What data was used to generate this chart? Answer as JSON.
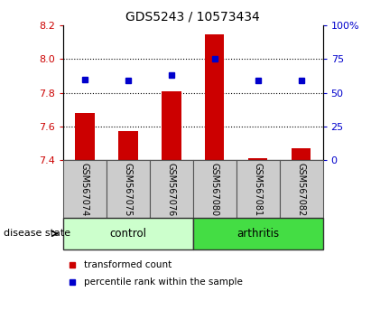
{
  "title": "GDS5243 / 10573434",
  "samples": [
    "GSM567074",
    "GSM567075",
    "GSM567076",
    "GSM567080",
    "GSM567081",
    "GSM567082"
  ],
  "transformed_count": [
    7.68,
    7.57,
    7.81,
    8.15,
    7.41,
    7.47
  ],
  "percentile_rank": [
    60,
    59,
    63,
    75,
    59,
    59
  ],
  "bar_bottom": 7.4,
  "ylim_left": [
    7.4,
    8.2
  ],
  "ylim_right": [
    0,
    100
  ],
  "yticks_left": [
    7.4,
    7.6,
    7.8,
    8.0,
    8.2
  ],
  "yticks_right": [
    0,
    25,
    50,
    75,
    100
  ],
  "ytick_labels_right": [
    "0",
    "25",
    "50",
    "75",
    "100%"
  ],
  "bar_color": "#cc0000",
  "dot_color": "#0000cc",
  "control_color": "#ccffcc",
  "arthritis_color": "#44dd44",
  "sample_box_color": "#cccccc",
  "group_label": "disease state",
  "legend_bar_label": "transformed count",
  "legend_dot_label": "percentile rank within the sample",
  "left_tick_color": "#cc0000",
  "right_tick_color": "#0000cc",
  "figsize": [
    4.11,
    3.54
  ],
  "dpi": 100
}
